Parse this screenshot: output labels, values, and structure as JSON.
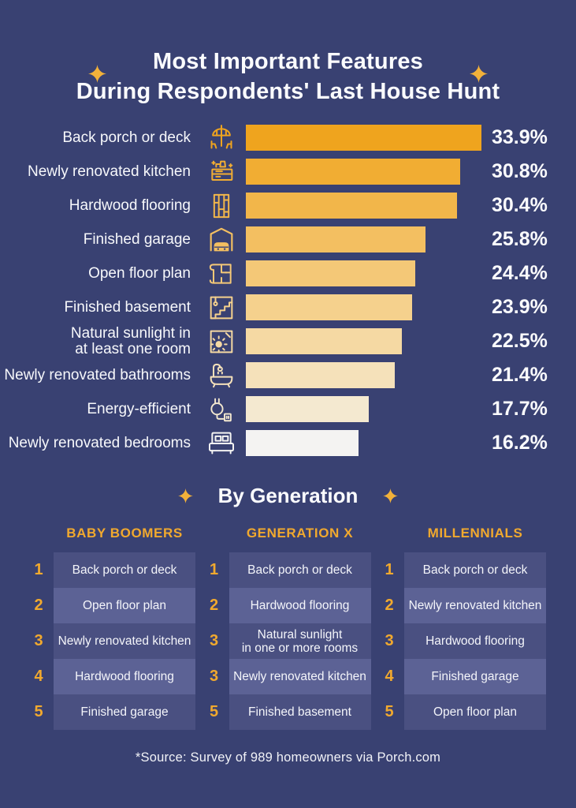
{
  "page": {
    "background": "#394172",
    "accent": "#F1A92E"
  },
  "title": {
    "line1": "Most Important Features",
    "line2": "During Respondents' Last House Hunt"
  },
  "chart_data": {
    "type": "bar",
    "orientation": "horizontal",
    "title": "Most Important Features During Respondents' Last House Hunt",
    "unit": "%",
    "xlim": [
      0,
      33.9
    ],
    "grid": false,
    "categories": [
      "Back porch or deck",
      "Newly renovated kitchen",
      "Hardwood flooring",
      "Finished garage",
      "Open floor plan",
      "Finished basement",
      "Natural sunlight in at least one room",
      "Newly renovated bathrooms",
      "Energy-efficient",
      "Newly renovated bedrooms"
    ],
    "values": [
      33.9,
      30.8,
      30.4,
      25.8,
      24.4,
      23.9,
      22.5,
      21.4,
      17.7,
      16.2
    ],
    "bar_colors": [
      "#EFA41E",
      "#F1AD33",
      "#F2B64A",
      "#F3BF61",
      "#F4C877",
      "#F5D18D",
      "#F5D9A3",
      "#F5E1BA",
      "#F4E9D0",
      "#F4F3F2"
    ],
    "icons": [
      "patio-umbrella-icon",
      "kitchen-faucet-icon",
      "flooring-icon",
      "garage-car-icon",
      "floor-plan-icon",
      "basement-stairs-icon",
      "sunlight-window-icon",
      "bathtub-icon",
      "plug-icon",
      "bed-icon"
    ]
  },
  "bars": [
    {
      "label": "Back porch or deck",
      "value": 33.9,
      "value_label": "33.9%",
      "color": "#EFA41E"
    },
    {
      "label": "Newly renovated kitchen",
      "value": 30.8,
      "value_label": "30.8%",
      "color": "#F1AD33"
    },
    {
      "label": "Hardwood flooring",
      "value": 30.4,
      "value_label": "30.4%",
      "color": "#F2B64A"
    },
    {
      "label": "Finished garage",
      "value": 25.8,
      "value_label": "25.8%",
      "color": "#F3BF61"
    },
    {
      "label": "Open floor plan",
      "value": 24.4,
      "value_label": "24.4%",
      "color": "#F4C877"
    },
    {
      "label": "Finished basement",
      "value": 23.9,
      "value_label": "23.9%",
      "color": "#F5D18D"
    },
    {
      "label": "Natural sunlight in\nat least one room",
      "value": 22.5,
      "value_label": "22.5%",
      "color": "#F5D9A3"
    },
    {
      "label": "Newly renovated bathrooms",
      "value": 21.4,
      "value_label": "21.4%",
      "color": "#F5E1BA"
    },
    {
      "label": "Energy-efficient",
      "value": 17.7,
      "value_label": "17.7%",
      "color": "#F4E9D0"
    },
    {
      "label": "Newly renovated bedrooms",
      "value": 16.2,
      "value_label": "16.2%",
      "color": "#F4F3F2"
    }
  ],
  "generation": {
    "heading": "By Generation",
    "columns": [
      {
        "header": "BABY BOOMERS",
        "rows": [
          {
            "rank": "1",
            "label": "Back porch or deck"
          },
          {
            "rank": "2",
            "label": "Open floor plan"
          },
          {
            "rank": "3",
            "label": "Newly renovated kitchen"
          },
          {
            "rank": "4",
            "label": "Hardwood flooring"
          },
          {
            "rank": "5",
            "label": "Finished garage"
          }
        ]
      },
      {
        "header": "GENERATION X",
        "rows": [
          {
            "rank": "1",
            "label": "Back porch or deck"
          },
          {
            "rank": "2",
            "label": "Hardwood flooring"
          },
          {
            "rank": "3",
            "label": "Natural sunlight\nin one or more rooms"
          },
          {
            "rank": "3",
            "label": "Newly renovated kitchen"
          },
          {
            "rank": "5",
            "label": "Finished basement"
          }
        ]
      },
      {
        "header": "MILLENNIALS",
        "rows": [
          {
            "rank": "1",
            "label": "Back porch or deck"
          },
          {
            "rank": "2",
            "label": "Newly renovated kitchen"
          },
          {
            "rank": "3",
            "label": "Hardwood flooring"
          },
          {
            "rank": "4",
            "label": "Finished garage"
          },
          {
            "rank": "5",
            "label": "Open floor plan"
          }
        ]
      }
    ]
  },
  "footer": {
    "source": "*Source: Survey of 989 homeowners via Porch.com"
  }
}
